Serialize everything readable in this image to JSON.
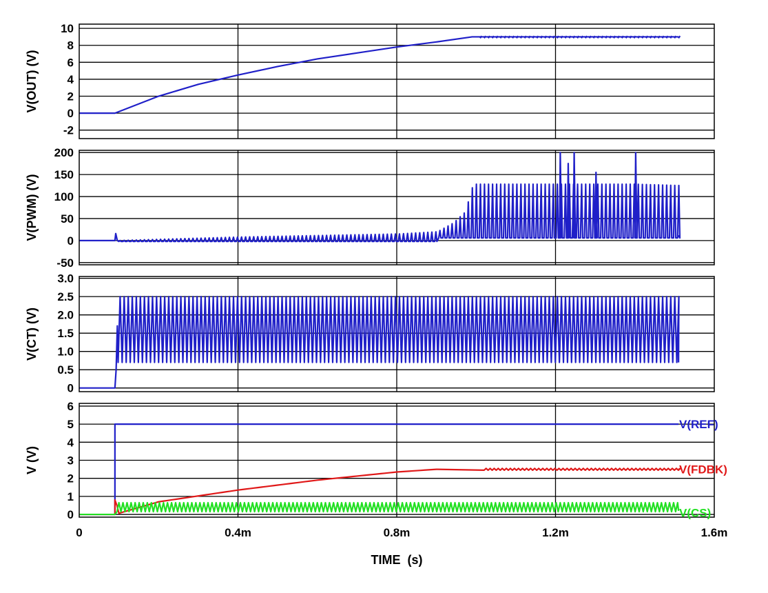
{
  "chart_data": {
    "type": "line",
    "x_axis": {
      "label": "TIME  (s)",
      "range": [
        0,
        0.0016
      ],
      "ticks": [
        0,
        0.0004,
        0.0008,
        0.0012,
        0.0016
      ],
      "tick_labels": [
        "0",
        "0.4m",
        "0.8m",
        "1.2m",
        "1.6m"
      ]
    },
    "grid": true,
    "colors": {
      "blue": "#1f1fc8",
      "red": "#e01818",
      "green": "#22e022"
    },
    "panels": [
      {
        "ylabel": "V(OUT)  (V)",
        "ylim": [
          -3,
          10.5
        ],
        "ticks": [
          10,
          8,
          6,
          4,
          2,
          0,
          -2
        ],
        "tick_labels": [
          "10",
          "8",
          "6",
          "4",
          "2",
          "0",
          "-2"
        ],
        "series": [
          {
            "name": "V(OUT)",
            "color": "#1f1fc8",
            "x": [
              0,
              9e-05,
              0.0002,
              0.0003,
              0.0004,
              0.0005,
              0.0006,
              0.0007,
              0.0008,
              0.0009,
              0.00099,
              0.00151
            ],
            "y": [
              0,
              0,
              2.0,
              3.4,
              4.5,
              5.5,
              6.4,
              7.1,
              7.8,
              8.4,
              9.0,
              9.0
            ]
          }
        ]
      },
      {
        "ylabel": "V(PWM)  (V)",
        "ylim": [
          -55,
          205
        ],
        "ticks": [
          200,
          150,
          100,
          50,
          0,
          -50
        ],
        "tick_labels": [
          "200",
          "150",
          "100",
          "50",
          "0",
          "-50"
        ],
        "series": [
          {
            "name": "V(PWM)",
            "color": "#1f1fc8",
            "x": [
              0,
              9e-05,
              0.0004,
              0.0008,
              0.0009,
              0.00094,
              0.00097,
              0.00099,
              0.0012,
              0.0013,
              0.0014,
              0.00151
            ],
            "y": [
              0,
              0,
              8,
              15,
              20,
              40,
              65,
              128,
              128,
              128,
              128,
              125
            ]
          }
        ]
      },
      {
        "ylabel": "V(CT)  (V)",
        "ylim": [
          -0.1,
          3.05
        ],
        "ticks": [
          3.0,
          2.5,
          2.0,
          1.5,
          1.0,
          0.5,
          0
        ],
        "tick_labels": [
          "3.0",
          "2.5",
          "2.0",
          "1.5",
          "1.0",
          "0.5",
          "0"
        ],
        "series": [
          {
            "name": "V(CT)",
            "color": "#1f1fc8",
            "x": [
              0,
              9e-05,
              9.5e-05,
              0.0001,
              0.0004,
              0.0008,
              0.0012,
              0.00151
            ],
            "y": [
              0,
              0,
              1.5,
              2.5,
              2.5,
              2.5,
              2.5,
              2.5
            ]
          }
        ]
      },
      {
        "ylabel": "V  (V)",
        "ylim": [
          -0.15,
          6.15
        ],
        "ticks": [
          6,
          5,
          4,
          3,
          2,
          1,
          0
        ],
        "tick_labels": [
          "6",
          "5",
          "4",
          "3",
          "2",
          "1",
          "0"
        ],
        "series": [
          {
            "name": "V(REF)",
            "color": "#1f1fc8",
            "x": [
              0,
              9e-05,
              9e-05,
              0.00151
            ],
            "y": [
              0,
              0,
              5,
              5
            ]
          },
          {
            "name": "V(FDBK)",
            "color": "#e01818",
            "x": [
              0,
              9e-05,
              0.0002,
              0.0004,
              0.0006,
              0.0008,
              0.0009,
              0.00151
            ],
            "y": [
              0,
              0,
              0.7,
              1.35,
              1.9,
              2.35,
              2.5,
              2.5
            ]
          },
          {
            "name": "V(CS)",
            "color": "#22e022",
            "x": [
              0,
              9e-05,
              0.0001,
              0.0008,
              0.00151
            ],
            "y": [
              0,
              0,
              0.6,
              0.6,
              0.6
            ]
          }
        ]
      }
    ]
  }
}
